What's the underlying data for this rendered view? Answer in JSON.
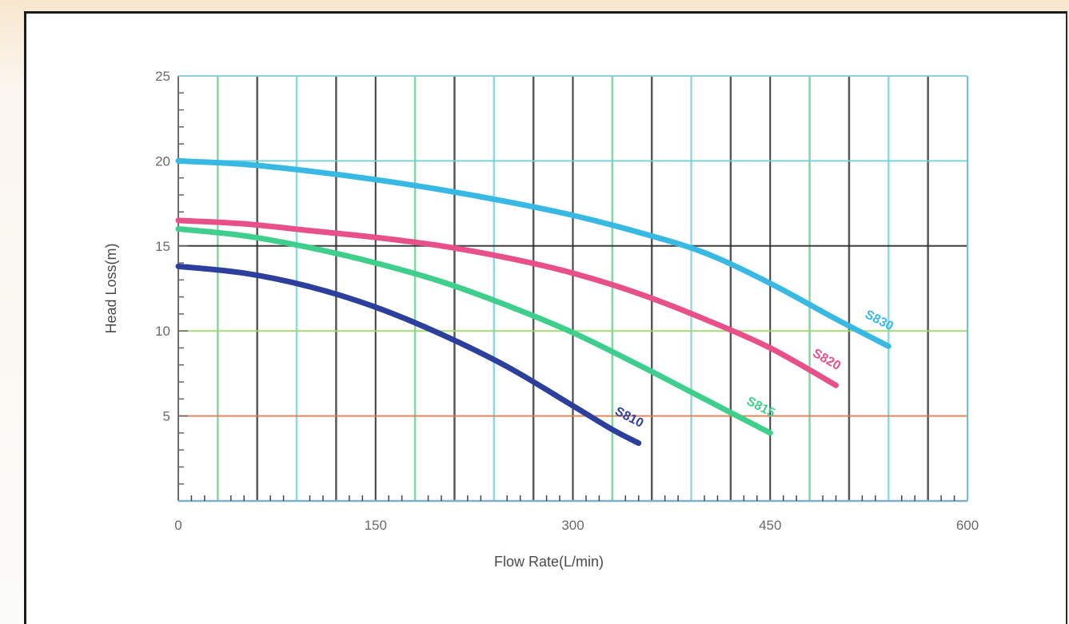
{
  "chart_data": {
    "type": "line",
    "xlabel": "Flow Rate(L/min)",
    "ylabel": "Head Loss(m)",
    "xlim": [
      0,
      600
    ],
    "ylim": [
      0,
      25
    ],
    "xticks": [
      0,
      150,
      300,
      450,
      600
    ],
    "xtick_labels": [
      "0",
      "150",
      "300",
      "450",
      "600"
    ],
    "yticks": [
      5,
      10,
      15,
      20,
      25
    ],
    "ytick_labels": [
      "5",
      "10",
      "15",
      "20",
      "25"
    ],
    "grid": true,
    "legend": "none",
    "series": [
      {
        "name": "S810",
        "label_text": "S810",
        "color": "#2c3f9c",
        "x": [
          0,
          50,
          100,
          150,
          200,
          250,
          300,
          330,
          350
        ],
        "y": [
          13.8,
          13.4,
          12.6,
          11.4,
          9.8,
          7.9,
          5.6,
          4.2,
          3.4
        ]
      },
      {
        "name": "S815",
        "label_text": "S815",
        "color": "#3fcf8c",
        "x": [
          0,
          50,
          100,
          150,
          200,
          250,
          300,
          350,
          400,
          450
        ],
        "y": [
          16.0,
          15.6,
          14.9,
          14.0,
          12.9,
          11.5,
          9.9,
          8.0,
          6.0,
          4.0
        ]
      },
      {
        "name": "S820",
        "label_text": "S820",
        "color": "#e8508a",
        "x": [
          0,
          50,
          100,
          150,
          200,
          250,
          300,
          350,
          400,
          450,
          500
        ],
        "y": [
          16.5,
          16.3,
          15.9,
          15.5,
          15.0,
          14.3,
          13.4,
          12.2,
          10.7,
          9.0,
          6.8
        ]
      },
      {
        "name": "S830",
        "label_text": "S830",
        "color": "#38b9e4",
        "x": [
          0,
          50,
          100,
          150,
          200,
          250,
          300,
          350,
          400,
          450,
          500,
          540
        ],
        "y": [
          20.0,
          19.8,
          19.4,
          18.9,
          18.3,
          17.6,
          16.8,
          15.8,
          14.6,
          12.8,
          10.7,
          9.1
        ]
      }
    ]
  }
}
